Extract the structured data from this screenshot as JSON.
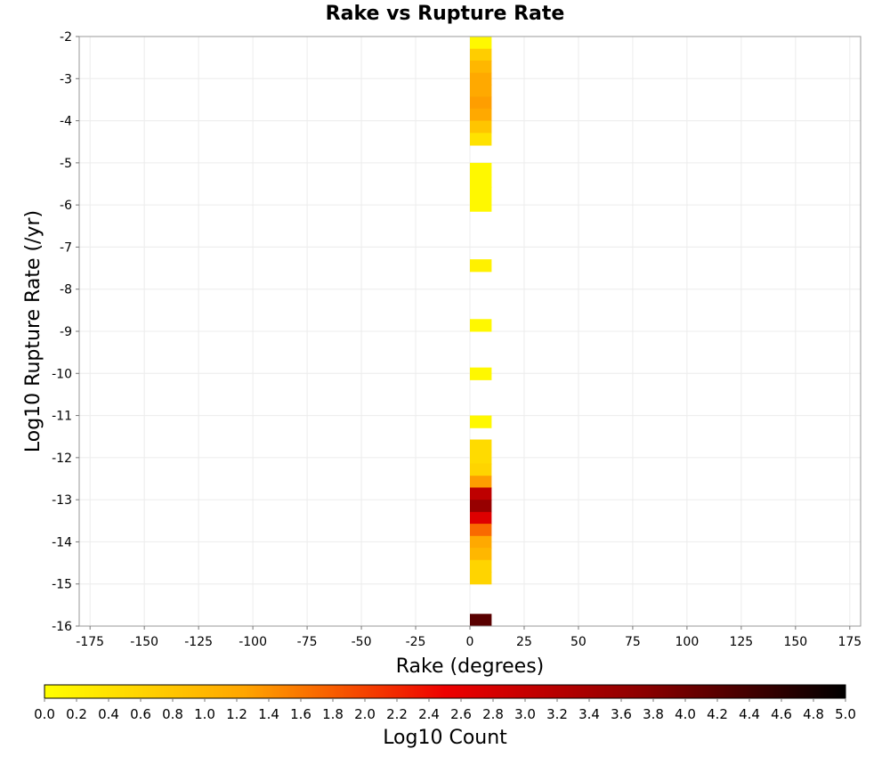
{
  "chart_data": {
    "type": "heatmap",
    "title": "Rake vs Rupture Rate",
    "xlabel": "Rake (degrees)",
    "ylabel": "Log10 Rupture Rate (/yr)",
    "xlim": [
      -180,
      180
    ],
    "ylim": [
      -16,
      -2
    ],
    "x_ticks": [
      -175,
      -150,
      -125,
      -100,
      -75,
      -50,
      -25,
      0,
      25,
      50,
      75,
      100,
      125,
      150,
      175
    ],
    "y_ticks": [
      -2,
      -3,
      -4,
      -5,
      -6,
      -7,
      -8,
      -9,
      -10,
      -11,
      -12,
      -13,
      -14,
      -15,
      -16
    ],
    "grid": true,
    "cell_x_range": [
      0,
      10
    ],
    "cell_height": 0.29,
    "cells": [
      {
        "y": -2.0,
        "z": 0.1
      },
      {
        "y": -2.29,
        "z": 0.7
      },
      {
        "y": -2.57,
        "z": 1.0
      },
      {
        "y": -2.86,
        "z": 1.2
      },
      {
        "y": -3.14,
        "z": 1.2
      },
      {
        "y": -3.43,
        "z": 1.3
      },
      {
        "y": -3.71,
        "z": 1.2
      },
      {
        "y": -4.0,
        "z": 0.8
      },
      {
        "y": -4.29,
        "z": 0.4
      },
      {
        "y": -5.0,
        "z": 0.1
      },
      {
        "y": -5.29,
        "z": 0.1
      },
      {
        "y": -5.57,
        "z": 0.1
      },
      {
        "y": -5.86,
        "z": 0.1
      },
      {
        "y": -7.29,
        "z": 0.2
      },
      {
        "y": -8.71,
        "z": 0.1
      },
      {
        "y": -9.86,
        "z": 0.1
      },
      {
        "y": -11.0,
        "z": 0.1
      },
      {
        "y": -11.57,
        "z": 0.5
      },
      {
        "y": -11.86,
        "z": 0.5
      },
      {
        "y": -12.14,
        "z": 0.6
      },
      {
        "y": -12.43,
        "z": 1.3
      },
      {
        "y": -12.71,
        "z": 3.1
      },
      {
        "y": -13.0,
        "z": 3.6
      },
      {
        "y": -13.29,
        "z": 2.7
      },
      {
        "y": -13.57,
        "z": 1.7
      },
      {
        "y": -13.86,
        "z": 1.2
      },
      {
        "y": -14.14,
        "z": 1.0
      },
      {
        "y": -14.43,
        "z": 0.6
      },
      {
        "y": -14.71,
        "z": 0.6
      },
      {
        "y": -15.71,
        "z": 4.2
      }
    ],
    "colorbar": {
      "label": "Log10 Count",
      "min": 0.0,
      "max": 5.0,
      "tick_labels": [
        "0.0",
        "0.2",
        "0.4",
        "0.6",
        "0.8",
        "1.0",
        "1.2",
        "1.4",
        "1.6",
        "1.8",
        "2.0",
        "2.2",
        "2.4",
        "2.6",
        "2.8",
        "3.0",
        "3.2",
        "3.4",
        "3.6",
        "3.8",
        "4.0",
        "4.2",
        "4.4",
        "4.6",
        "4.8",
        "5.0"
      ],
      "colors": [
        "#ffff00",
        "#ffa500",
        "#ee0000",
        "#8b0000",
        "#000000"
      ]
    }
  }
}
